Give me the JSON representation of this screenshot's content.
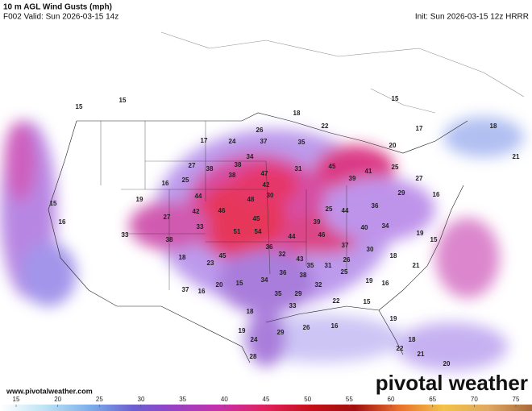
{
  "header": {
    "title": "10 m AGL Wind Gusts (mph)",
    "valid": "F002 Valid: Sun 2026-03-15 14z",
    "init": "Init: Sun 2026-03-15 12z HRRR"
  },
  "map_labels": [
    15,
    15,
    18,
    15,
    17,
    18,
    21,
    17,
    24,
    26,
    37,
    35,
    22,
    20,
    34,
    38,
    27,
    38,
    16,
    25,
    38,
    47,
    31,
    42,
    44,
    48,
    30,
    19,
    15,
    16,
    42,
    46,
    45,
    27,
    33,
    51,
    54,
    38,
    33,
    44,
    46,
    39,
    25,
    44,
    40,
    34,
    36,
    29,
    27,
    39,
    41,
    45,
    25,
    16,
    19,
    15,
    18,
    21,
    30,
    37,
    36,
    32,
    43,
    31,
    26,
    23,
    45,
    18,
    20,
    15,
    34,
    36,
    38,
    35,
    25,
    19,
    16,
    32,
    37,
    16,
    18,
    35,
    29,
    22,
    15,
    33,
    29,
    26,
    16,
    19,
    24,
    28,
    22,
    21,
    20,
    18,
    19
  ],
  "colorbar": {
    "ticks": [
      15,
      20,
      25,
      30,
      35,
      40,
      45,
      50,
      55,
      60,
      65,
      70,
      75
    ],
    "colors": [
      "#ffffff",
      "#bfe3f5",
      "#7fb0ea",
      "#6a5fd0",
      "#9b3fc4",
      "#c62fa8",
      "#e0205a",
      "#c40f1a",
      "#a00f0f",
      "#e8702a",
      "#f2c24a",
      "#e0a860",
      "#a86a3a"
    ]
  },
  "footer": {
    "url": "www.pivotalweather.com",
    "brand": "pivotal weather"
  }
}
